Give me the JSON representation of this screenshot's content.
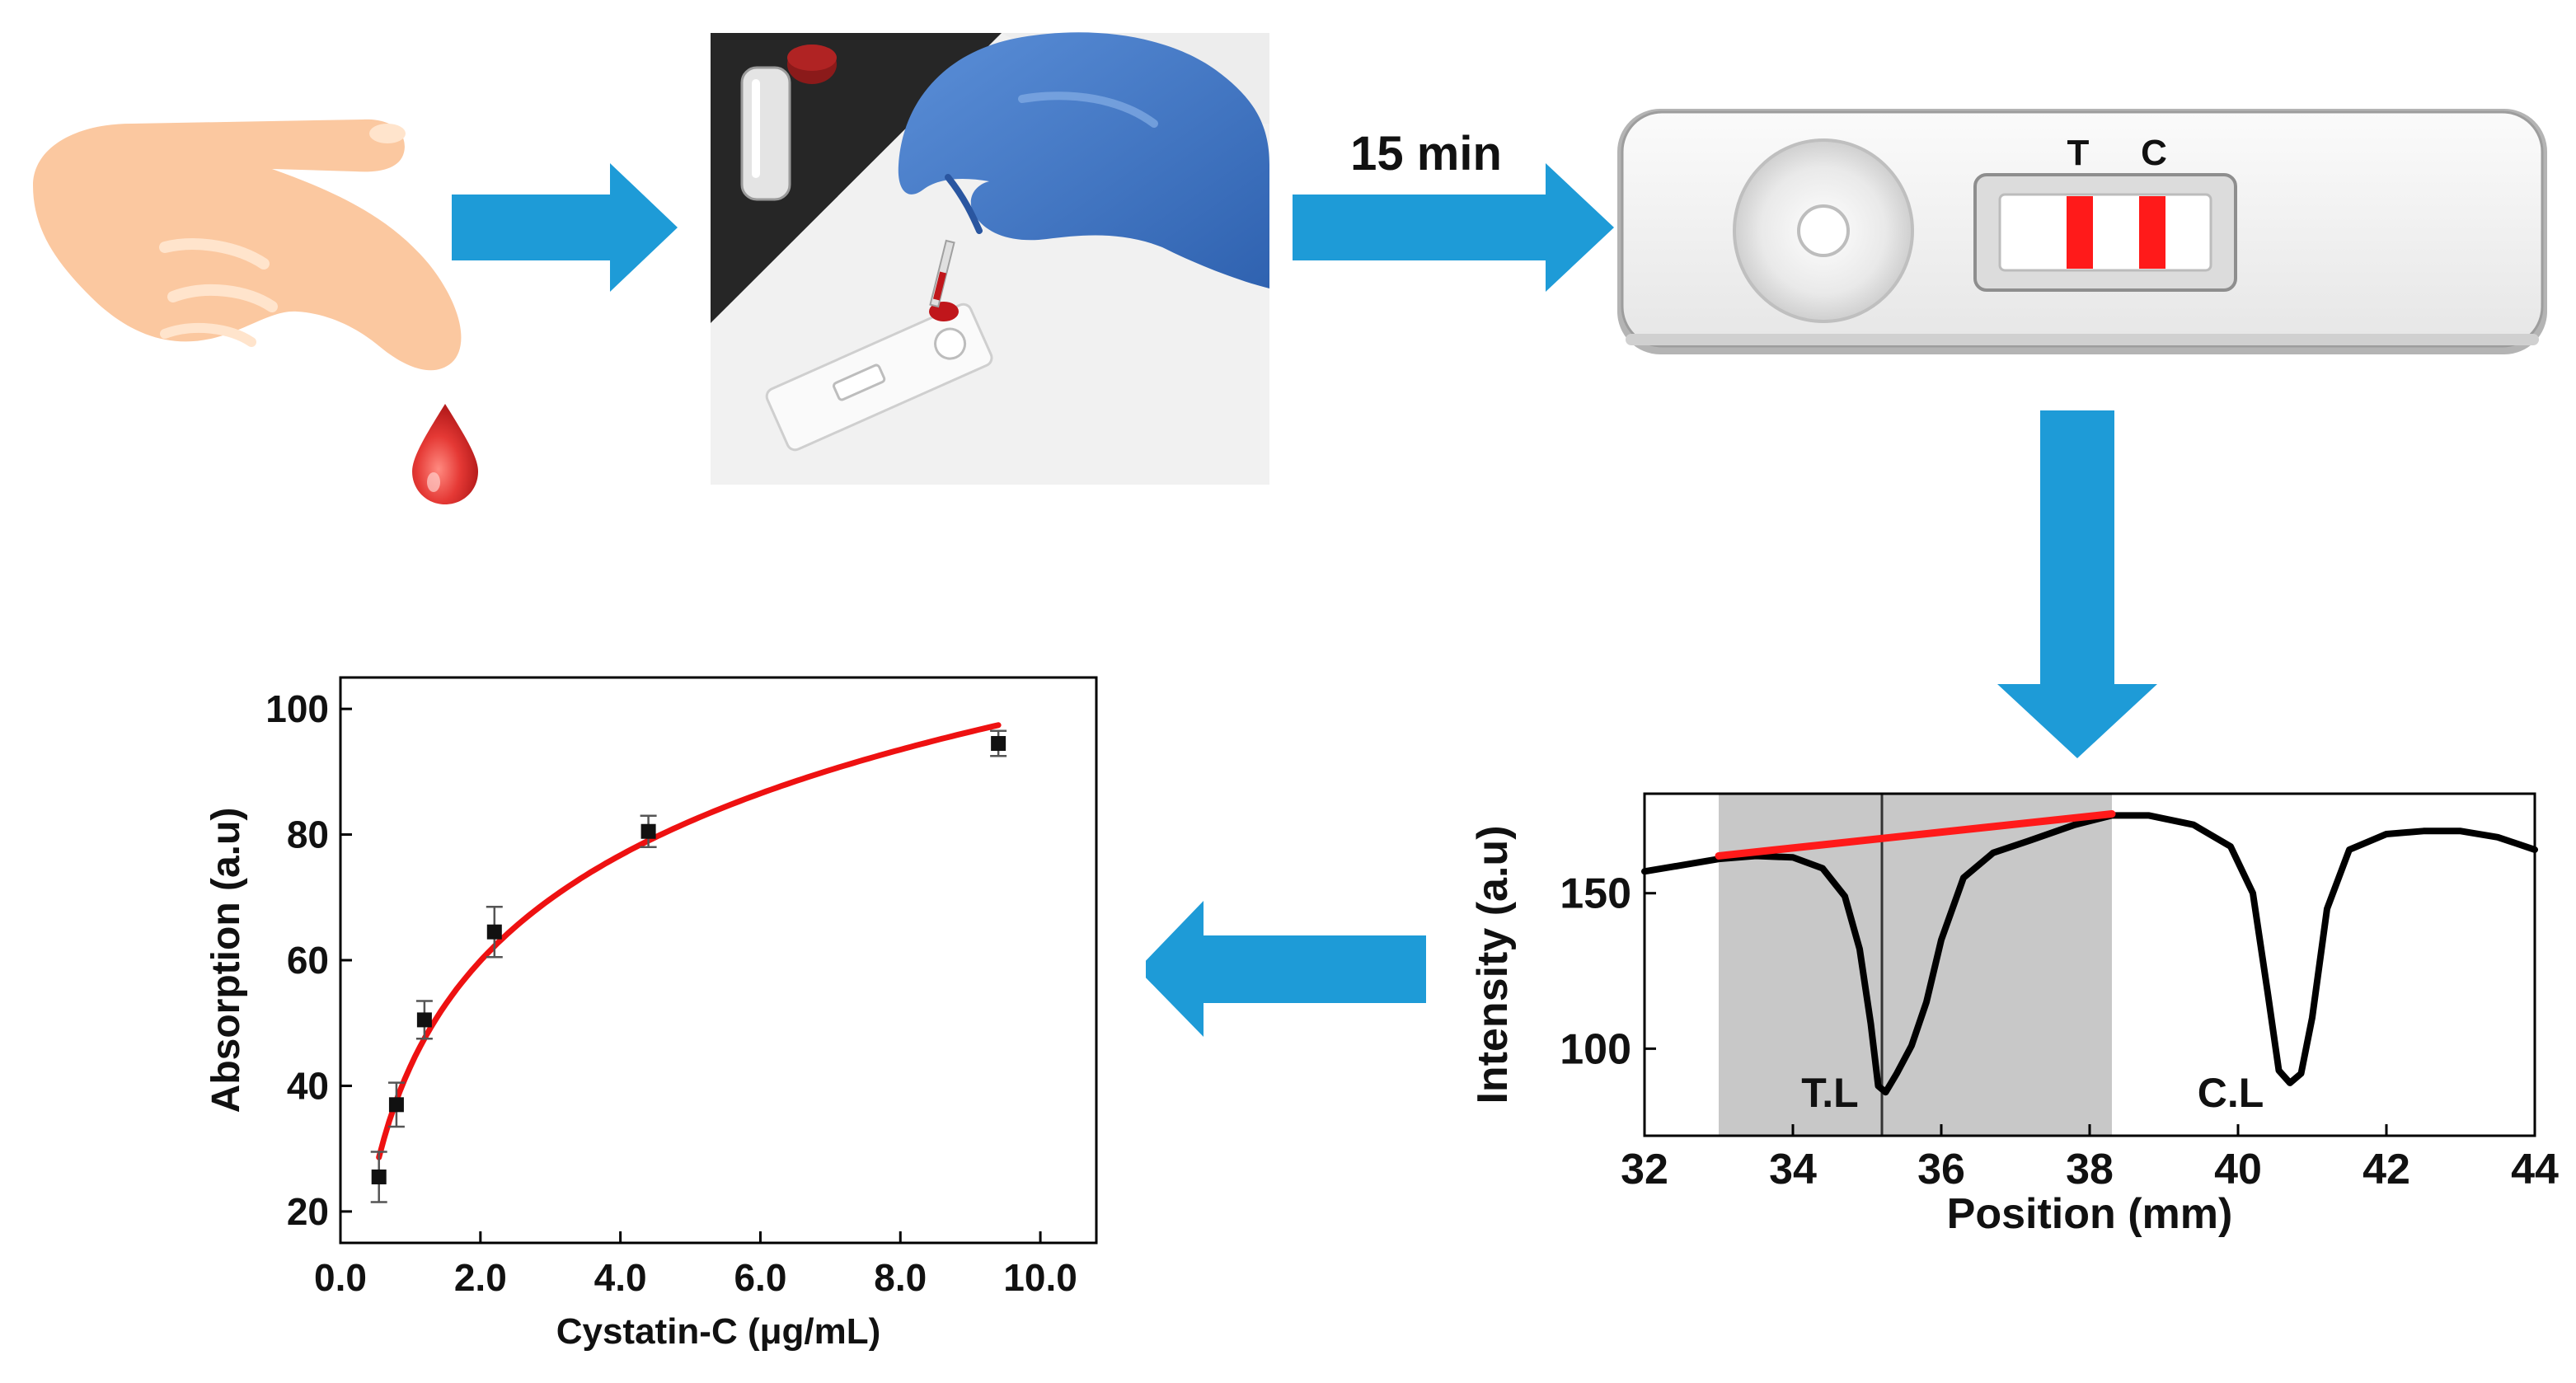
{
  "colors": {
    "arrow": "#1e9bd7",
    "strip_line": "#ff1a1a",
    "fit_curve": "#ee1111",
    "shaded_region": "#c8c8c8",
    "glove": "#3a75c4",
    "blood": "#d81b20"
  },
  "step_label": "15 min",
  "strip": {
    "test_label": "T",
    "control_label": "C"
  },
  "icons": [
    "hand-icon",
    "blood-drop-icon",
    "sample-application-photo",
    "test-strip-icon"
  ],
  "chart_data": [
    {
      "type": "line",
      "xlabel": "Position (mm)",
      "ylabel": "Intensity (a.u)",
      "xlim": [
        32,
        44
      ],
      "ylim": [
        72,
        182
      ],
      "xticks": [
        32,
        34,
        36,
        38,
        40,
        42,
        44
      ],
      "yticks": [
        100,
        150
      ],
      "grid": false,
      "shaded_region": [
        33,
        38.3
      ],
      "vertical_marker_x": 35.2,
      "annotations": [
        {
          "text": "T.L",
          "x": 34.5,
          "y": 86
        },
        {
          "text": "C.L",
          "x": 39.9,
          "y": 86
        }
      ],
      "series": [
        {
          "x": [
            32,
            32.5,
            33,
            33.5,
            34,
            34.4,
            34.7,
            34.9,
            35.05,
            35.15,
            35.25,
            35.4,
            35.6,
            35.8,
            36.0,
            36.3,
            36.7,
            37.2,
            37.8,
            38.3,
            38.8,
            39.4,
            39.9,
            40.2,
            40.4,
            40.55,
            40.7,
            40.85,
            41.0,
            41.2,
            41.5,
            42,
            42.5,
            43,
            43.5,
            44
          ],
          "values": [
            157,
            159,
            161,
            162,
            161.5,
            158,
            149,
            132,
            108,
            88,
            86,
            92,
            101,
            115,
            135,
            155,
            163,
            167,
            172,
            175,
            175,
            172,
            165,
            150,
            118,
            93,
            89,
            92,
            110,
            145,
            164,
            169,
            170,
            170,
            168,
            164
          ]
        }
      ],
      "baseline": {
        "x": [
          33,
          38.3
        ],
        "values": [
          162,
          175.5
        ]
      }
    },
    {
      "type": "scatter",
      "xlabel": "Cystatin-C (μg/mL)",
      "ylabel": "Absorption (a.u)",
      "xlim": [
        0,
        10.8
      ],
      "ylim": [
        15,
        105
      ],
      "xticks": [
        "0.0",
        "2.0",
        "4.0",
        "6.0",
        "8.0",
        "10.0"
      ],
      "yticks": [
        20,
        40,
        60,
        80,
        100
      ],
      "grid": false,
      "series": [
        {
          "x": [
            0.55,
            0.8,
            1.2,
            2.2,
            4.4,
            9.4
          ],
          "values": [
            25.5,
            37,
            50.5,
            64.5,
            80.5,
            94.5
          ],
          "errors": [
            4,
            3.5,
            3,
            4,
            2.5,
            2
          ]
        }
      ],
      "fit": "logarithmic"
    }
  ]
}
